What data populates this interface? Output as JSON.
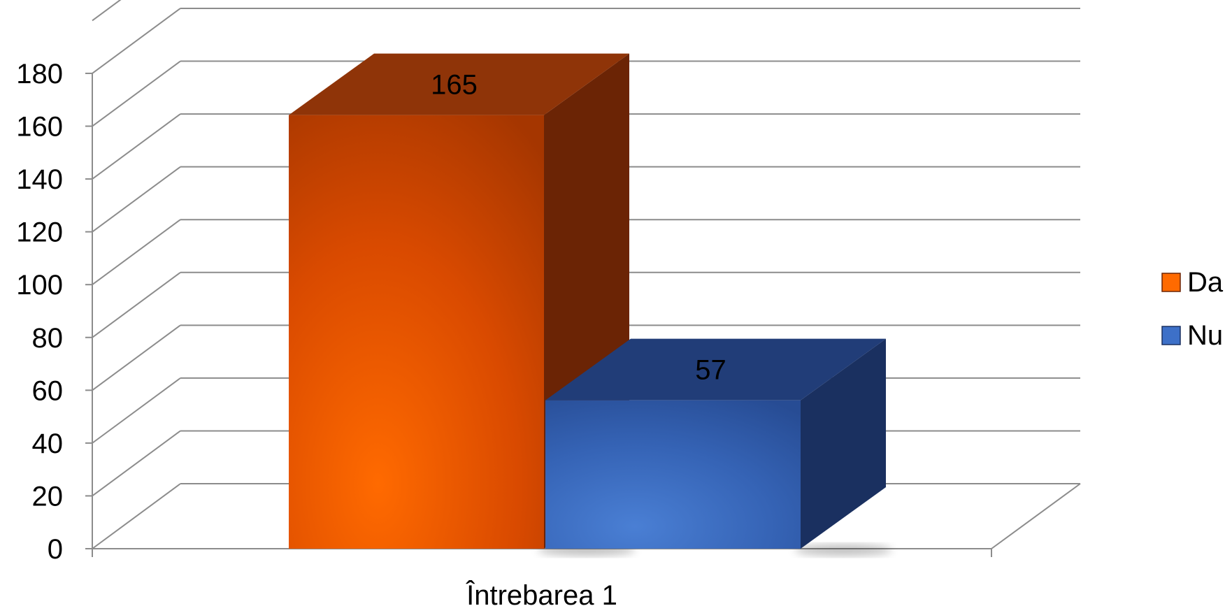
{
  "chart_data": {
    "type": "bar",
    "style": "3d-clustered-column",
    "title": "",
    "xlabel": "",
    "ylabel": "",
    "categories": [
      "Întrebarea 1"
    ],
    "series": [
      {
        "name": "Da",
        "values": [
          165
        ],
        "color": "#ff6a00",
        "side_color": "#6b2405",
        "top_color": "#8f3408"
      },
      {
        "name": "Nu",
        "values": [
          57
        ],
        "color": "#3d70c8",
        "side_color": "#1a3060",
        "top_color": "#213d78"
      }
    ],
    "data_labels": [
      "165",
      "57"
    ],
    "ylim": [
      0,
      180
    ],
    "yticks": [
      0,
      20,
      40,
      60,
      80,
      100,
      120,
      140,
      160,
      180
    ],
    "ytick_labels": [
      "0",
      "20",
      "40",
      "60",
      "80",
      "100",
      "120",
      "140",
      "160",
      "180"
    ],
    "grid": true,
    "legend": {
      "position": "right",
      "entries": [
        "Da",
        "Nu"
      ]
    }
  }
}
